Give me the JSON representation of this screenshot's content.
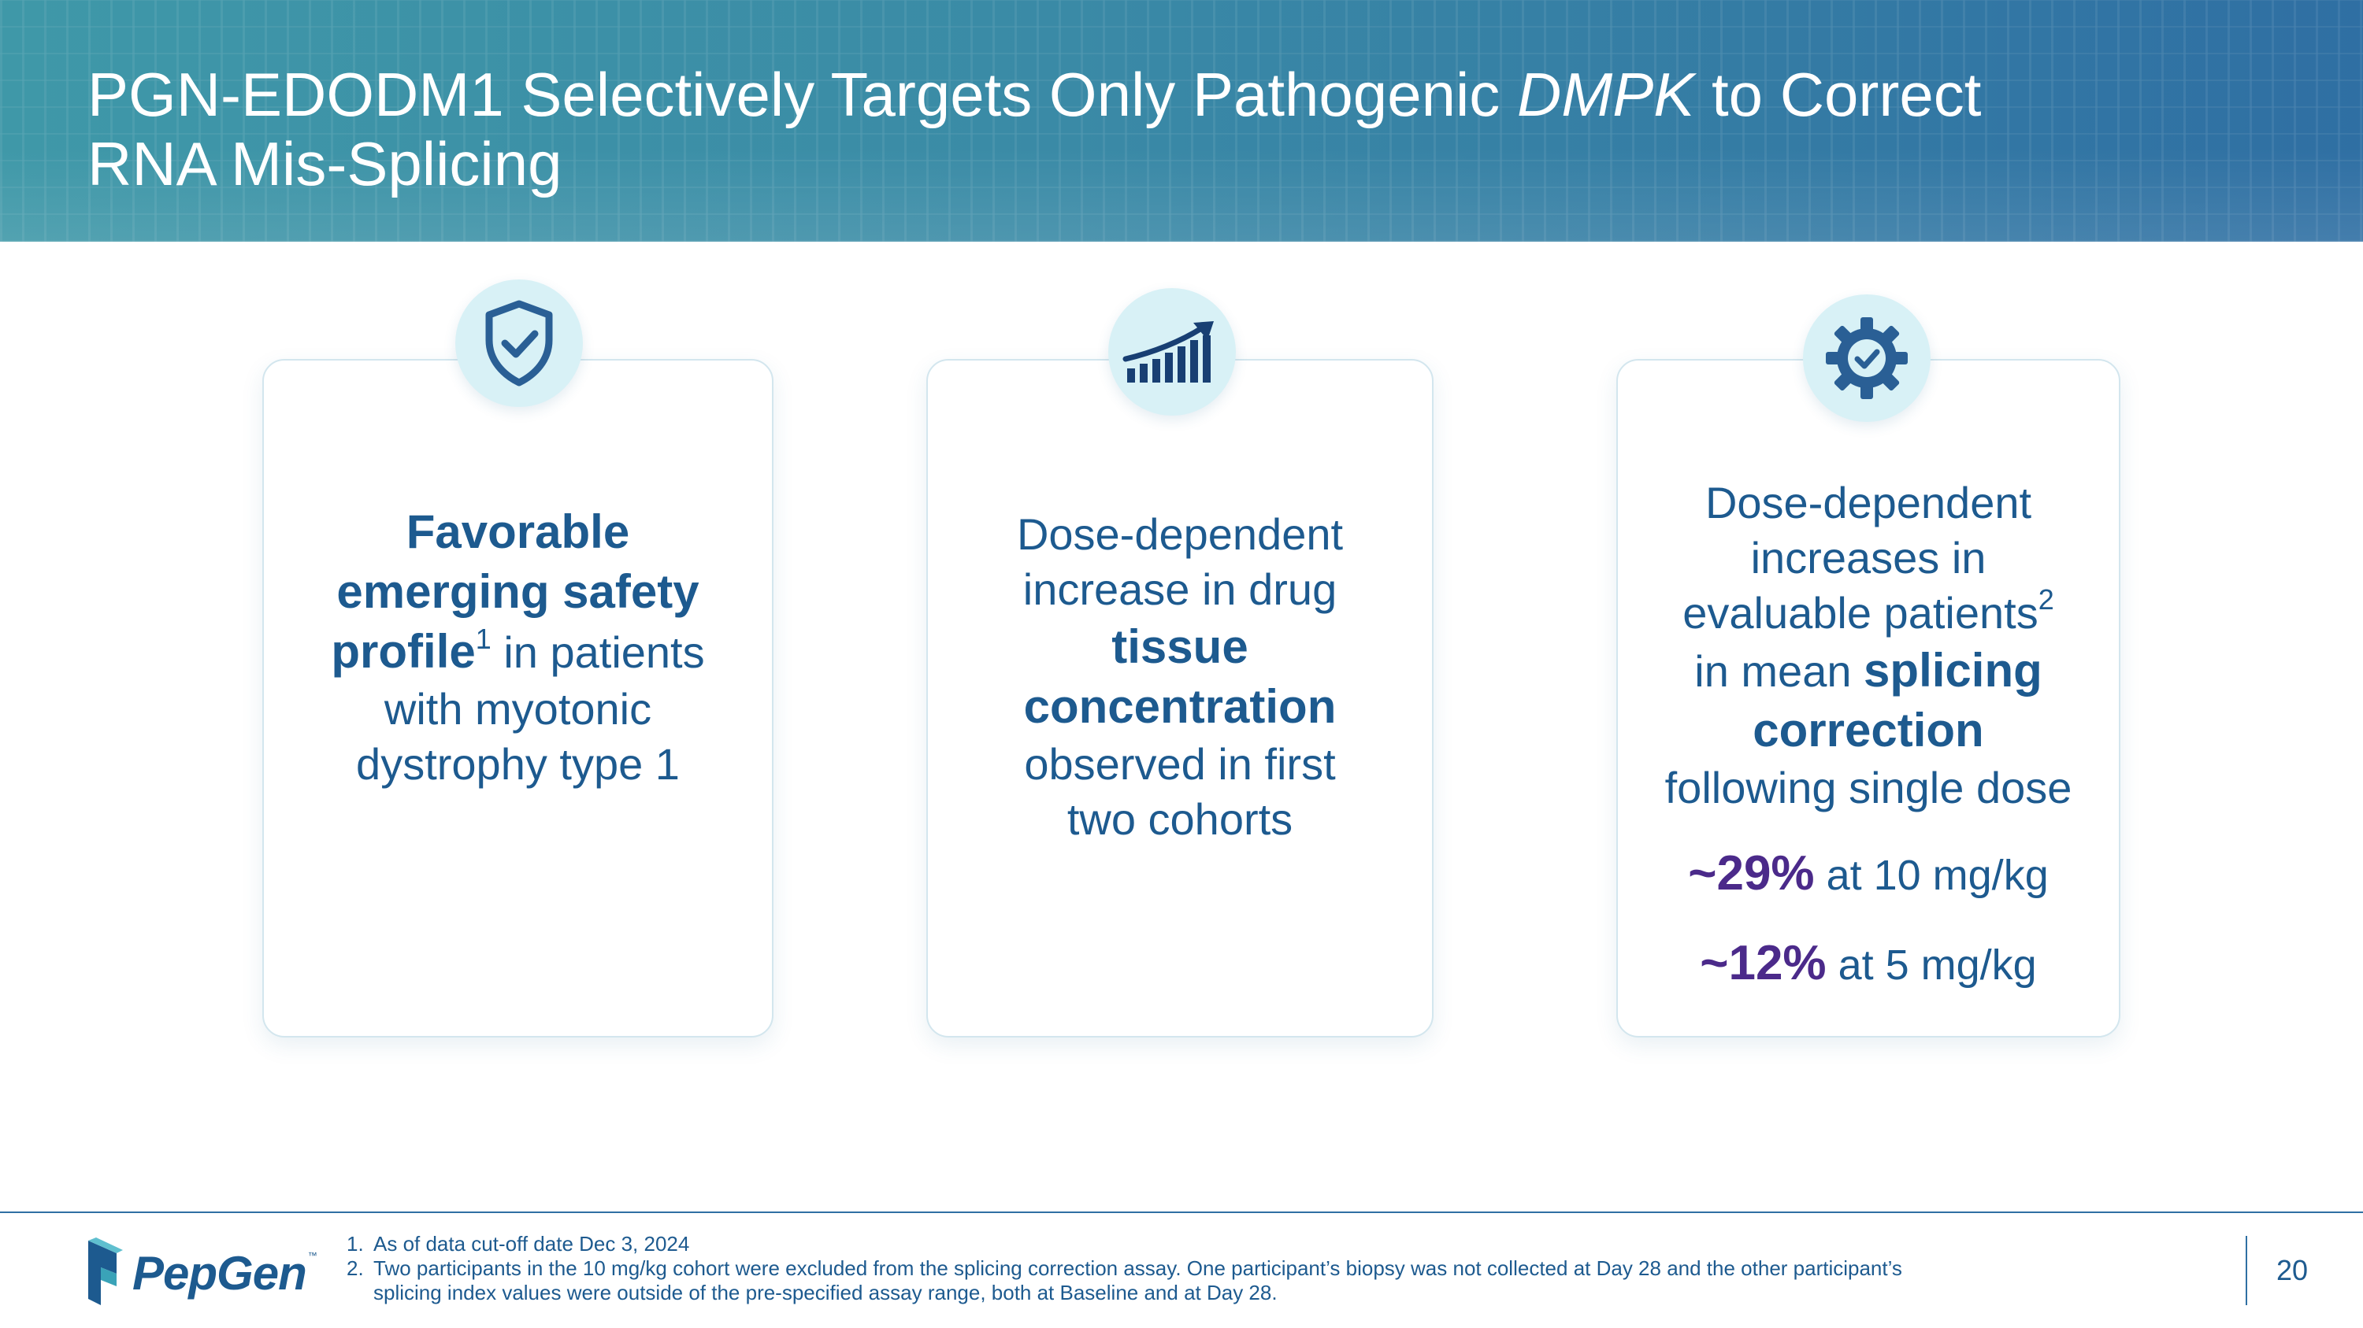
{
  "header": {
    "title_part1": "PGN-EDODM1 Selectively Targets Only Pathogenic ",
    "title_italic": "DMPK",
    "title_part2": " to Correct",
    "title_line2": "RNA Mis-Splicing"
  },
  "cards": [
    {
      "icon": "shield-check-icon",
      "bold_1": "Favorable",
      "bold_2": "emerging safety",
      "bold_3": "profile",
      "sup": "1",
      "text_1": " in patients",
      "text_2": "with myotonic",
      "text_3": "dystrophy type 1"
    },
    {
      "icon": "growth-chart-icon",
      "text_1": "Dose-dependent",
      "text_2": "increase in drug",
      "bold_1": "tissue",
      "bold_2": "concentration",
      "text_3": "observed in first",
      "text_4": "two cohorts"
    },
    {
      "icon": "gear-check-icon",
      "text_1": "Dose-dependent",
      "text_2": "increases in",
      "text_3": "evaluable patients",
      "sup": "2",
      "text_4": "in mean ",
      "bold_1": "splicing",
      "bold_2": "correction",
      "text_5": "following single dose",
      "stats": [
        {
          "value": "~29%",
          "label": " at 10 mg/kg"
        },
        {
          "value": "~12%",
          "label": " at 5 mg/kg"
        }
      ]
    }
  ],
  "footer": {
    "logo_text": "PepGen",
    "logo_tm": "™",
    "footnotes": [
      {
        "num": "1.",
        "text": "As of data cut-off date Dec 3, 2024"
      },
      {
        "num": "2.",
        "text": "Two participants in the 10 mg/kg cohort were excluded from the splicing correction assay. One participant’s biopsy was not collected at Day 28 and the other participant’s splicing index values were outside of the pre-specified assay range, both at Baseline and at Day 28."
      }
    ],
    "page_number": "20"
  },
  "colors": {
    "header_start": "#3f98a8",
    "header_end": "#2f6fa3",
    "text_blue": "#1d5a8f",
    "stat_purple": "#4b2a8a",
    "badge_bg": "#d8f1f6"
  }
}
